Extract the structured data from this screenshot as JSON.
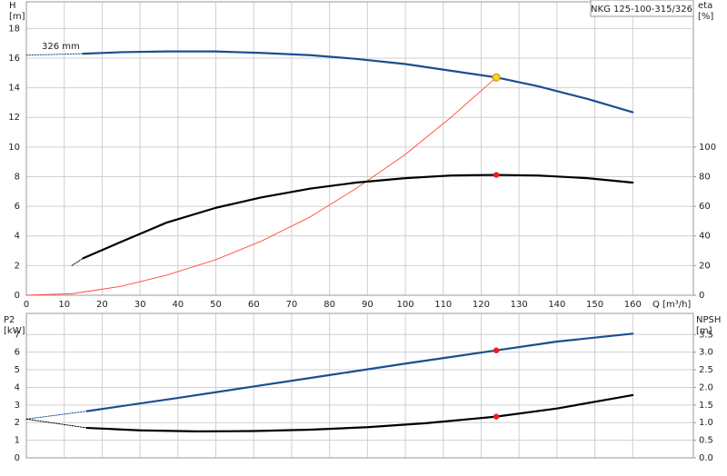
{
  "chart_data": [
    {
      "type": "line",
      "title": "NKG 125-100-315/326",
      "annotation": "326 mm",
      "ylabel": "H",
      "yunit": "[m]",
      "y2label": "eta",
      "y2unit": "[%]",
      "xlabel": "Q [m³/h]",
      "xlim": [
        0,
        176
      ],
      "xticks": [
        0,
        10,
        20,
        30,
        40,
        50,
        60,
        70,
        80,
        90,
        100,
        110,
        120,
        130,
        140,
        150,
        160
      ],
      "show_xtick_labels": true,
      "ylim": [
        0,
        19.8
      ],
      "yticks": [
        0,
        2,
        4,
        6,
        8,
        10,
        12,
        14,
        16,
        18
      ],
      "y2lim": [
        0,
        198
      ],
      "y2ticks": [
        0,
        20,
        40,
        60,
        80,
        100
      ],
      "grid": true,
      "series": [
        {
          "style": "dotted",
          "color": "#1a4f8f",
          "x": [
            0,
            15
          ],
          "values": [
            16.2,
            16.3
          ]
        },
        {
          "style": "solid",
          "color": "#1a4f8f",
          "x": [
            15,
            25,
            37,
            50,
            62,
            75,
            87,
            100,
            112,
            124,
            135,
            148,
            160
          ],
          "values": [
            16.3,
            16.4,
            16.45,
            16.45,
            16.35,
            16.2,
            15.95,
            15.6,
            15.15,
            14.7,
            14.1,
            13.25,
            12.35
          ]
        },
        {
          "style": "thin",
          "color": "#ff4a3a",
          "x": [
            0,
            12,
            25,
            37,
            50,
            62,
            75,
            87,
            100,
            112,
            124
          ],
          "values": [
            0,
            0.1,
            0.6,
            1.35,
            2.4,
            3.65,
            5.3,
            7.2,
            9.5,
            12.0,
            14.7
          ]
        },
        {
          "style": "dotted",
          "color": "#000000",
          "axis": "y2",
          "x": [
            12,
            15
          ],
          "values": [
            20,
            25
          ]
        },
        {
          "style": "solid",
          "color": "#000000",
          "axis": "y2",
          "x": [
            15,
            25,
            37,
            50,
            62,
            75,
            87,
            100,
            112,
            124,
            135,
            148,
            160
          ],
          "values": [
            25,
            36,
            49,
            59,
            66,
            72,
            76,
            79,
            80.8,
            81.2,
            80.8,
            79,
            76
          ]
        },
        {
          "style": "marker",
          "color": "#ffd21f",
          "x": [
            124
          ],
          "values": [
            14.7
          ]
        },
        {
          "style": "marker",
          "color": "#ee1c1c",
          "axis": "y2",
          "x": [
            124
          ],
          "values": [
            81.2
          ]
        }
      ]
    },
    {
      "type": "line",
      "ylabel": "P2",
      "yunit": "[kW]",
      "y2label": "NPSH",
      "y2unit": "[m]",
      "xlim": [
        0,
        176
      ],
      "xticks": [
        0,
        10,
        20,
        30,
        40,
        50,
        60,
        70,
        80,
        90,
        100,
        110,
        120,
        130,
        140,
        150,
        160
      ],
      "show_xtick_labels": false,
      "ylim": [
        0,
        8.2
      ],
      "yticks": [
        0,
        1,
        2,
        3,
        4,
        5,
        6,
        7
      ],
      "y2lim": [
        0,
        4.1
      ],
      "y2ticks": [
        {
          "value": 0,
          "label": "0.0"
        },
        {
          "value": 0.5,
          "label": "0.5"
        },
        {
          "value": 1,
          "label": "1.0"
        },
        {
          "value": 1.5,
          "label": "1.5"
        },
        {
          "value": 2,
          "label": "2.0"
        },
        {
          "value": 2.5,
          "label": "2.5"
        },
        {
          "value": 3,
          "label": "3.0"
        },
        {
          "value": 3.5,
          "label": "3.5"
        }
      ],
      "grid": true,
      "series": [
        {
          "style": "dotted",
          "color": "#1a4f8f",
          "x": [
            0,
            16
          ],
          "values": [
            2.2,
            2.65
          ]
        },
        {
          "style": "solid",
          "color": "#1a4f8f",
          "x": [
            16,
            40,
            60,
            80,
            100,
            124,
            140,
            160
          ],
          "values": [
            2.65,
            3.4,
            4.05,
            4.7,
            5.35,
            6.1,
            6.6,
            7.05
          ]
        },
        {
          "style": "dotted",
          "color": "#000000",
          "axis": "y2",
          "x": [
            0,
            16
          ],
          "values": [
            1.1,
            0.85
          ]
        },
        {
          "style": "solid",
          "color": "#000000",
          "axis": "y2",
          "x": [
            16,
            30,
            45,
            60,
            75,
            90,
            105,
            124,
            140,
            160
          ],
          "values": [
            0.85,
            0.78,
            0.75,
            0.76,
            0.8,
            0.87,
            0.98,
            1.17,
            1.4,
            1.78
          ]
        },
        {
          "style": "marker",
          "color": "#ee1c1c",
          "x": [
            124
          ],
          "values": [
            6.1
          ]
        },
        {
          "style": "marker",
          "color": "#ee1c1c",
          "axis": "y2",
          "x": [
            124
          ],
          "values": [
            1.17
          ]
        }
      ]
    }
  ]
}
